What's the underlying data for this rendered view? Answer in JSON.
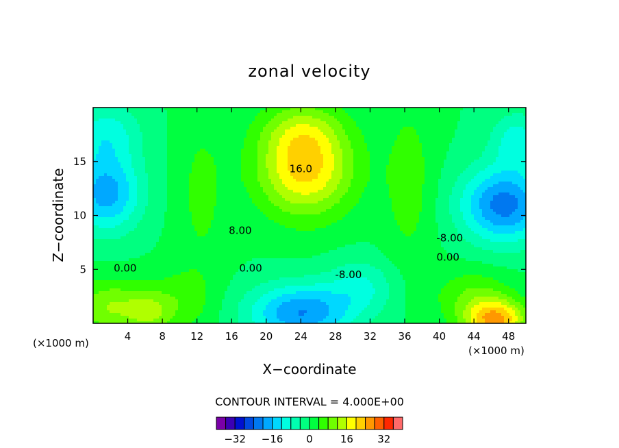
{
  "chart_data": {
    "type": "heatmap",
    "title": "zonal velocity",
    "xlabel": "X−coordinate",
    "ylabel": "Z−coordinate",
    "x_unit_left": "(×1000 m)",
    "x_unit_right": "(×1000 m)",
    "xlim": [
      0,
      50
    ],
    "ylim": [
      0,
      20
    ],
    "x_ticks": [
      4,
      8,
      12,
      16,
      20,
      24,
      28,
      32,
      36,
      40,
      44,
      48
    ],
    "x_tick_labels": [
      "4",
      "8",
      "12",
      "16",
      "20",
      "24",
      "28",
      "32",
      "36",
      "40",
      "44",
      "48"
    ],
    "y_ticks": [
      5,
      10,
      15
    ],
    "y_tick_labels": [
      "5",
      "10",
      "15"
    ],
    "contour_interval_label": "CONTOUR INTERVAL = 4.000E+00",
    "contour_interval": 4,
    "contour_labels": [
      {
        "text": "16.0",
        "x": 24.0,
        "z": 14.0
      },
      {
        "text": "8.00",
        "x": 17.0,
        "z": 8.3
      },
      {
        "text": "-8.00",
        "x": 41.2,
        "z": 7.6
      },
      {
        "text": "0.00",
        "x": 41.0,
        "z": 5.8
      },
      {
        "text": "0.00",
        "x": 3.7,
        "z": 4.8
      },
      {
        "text": "0.00",
        "x": 18.2,
        "z": 4.8
      },
      {
        "text": "-8.00",
        "x": 29.5,
        "z": 4.2
      }
    ],
    "colorbar": {
      "levels": [
        -40,
        -36,
        -32,
        -28,
        -24,
        -20,
        -16,
        -12,
        -8,
        -4,
        0,
        4,
        8,
        12,
        16,
        20,
        24,
        28,
        32,
        36,
        40
      ],
      "colors": [
        "#7a00a8",
        "#3c00b4",
        "#0010d0",
        "#0048e0",
        "#0078f0",
        "#00a8ff",
        "#00d8ff",
        "#00ffe0",
        "#00ffb0",
        "#00ff80",
        "#00ff40",
        "#30ff00",
        "#70ff00",
        "#b0ff00",
        "#ffff00",
        "#ffd000",
        "#ff9800",
        "#ff6000",
        "#ff2800",
        "#ff6a6a"
      ],
      "tick_values": [
        -32,
        -16,
        0,
        16,
        32
      ],
      "tick_labels": [
        "−32",
        "−16",
        "0",
        "16",
        "32"
      ]
    },
    "field_blobs": [
      {
        "x": 24.5,
        "z": 14.5,
        "sx": 5.5,
        "sz": 4.5,
        "amp": 22
      },
      {
        "x": 24.0,
        "z": 18.0,
        "sx": 4.5,
        "sz": 2.5,
        "amp": 6
      },
      {
        "x": 47.5,
        "z": 11.0,
        "sx": 5.0,
        "sz": 3.5,
        "amp": -22
      },
      {
        "x": 49.0,
        "z": 17.0,
        "sx": 3.0,
        "sz": 2.5,
        "amp": -10
      },
      {
        "x": 1.5,
        "z": 12.0,
        "sx": 4.0,
        "sz": 3.5,
        "amp": -18
      },
      {
        "x": 1.5,
        "z": 17.5,
        "sx": 4.0,
        "sz": 3.0,
        "amp": -10
      },
      {
        "x": 24.0,
        "z": 1.0,
        "sx": 6.0,
        "sz": 2.6,
        "amp": -20
      },
      {
        "x": 31.0,
        "z": 3.5,
        "sx": 4.0,
        "sz": 2.5,
        "amp": -8
      },
      {
        "x": 2.0,
        "z": 1.5,
        "sx": 4.5,
        "sz": 2.5,
        "amp": 12
      },
      {
        "x": 6.5,
        "z": 1.0,
        "sx": 2.5,
        "sz": 1.8,
        "amp": 8
      },
      {
        "x": 46.5,
        "z": 0.3,
        "sx": 3.5,
        "sz": 1.8,
        "amp": 24
      },
      {
        "x": 44.0,
        "z": 2.5,
        "sx": 4.5,
        "sz": 2.5,
        "amp": 8
      },
      {
        "x": 10.0,
        "z": 2.0,
        "sx": 4.0,
        "sz": 3.0,
        "amp": 6
      },
      {
        "x": 36.5,
        "z": 13.0,
        "sx": 3.0,
        "sz": 8.0,
        "amp": 6
      },
      {
        "x": 12.5,
        "z": 12.0,
        "sx": 3.0,
        "sz": 8.0,
        "amp": 5
      }
    ],
    "grid": false
  }
}
